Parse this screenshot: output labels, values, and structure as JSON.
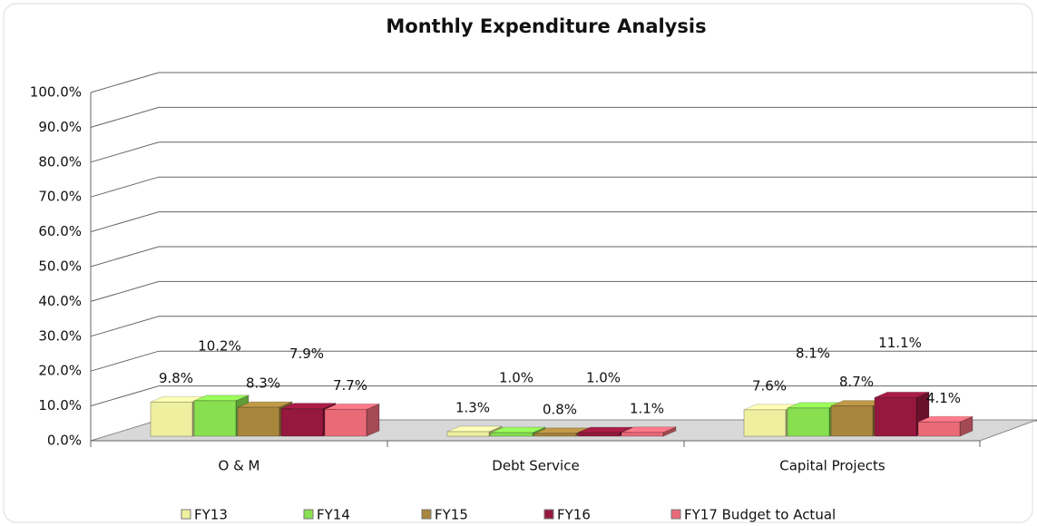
{
  "chart_data": {
    "type": "bar3d",
    "title": "Monthly Expenditure Analysis",
    "categories": [
      "O & M",
      "Debt Service",
      "Capital Projects"
    ],
    "series": [
      {
        "name": "FY13",
        "color": "#eef0a0",
        "values": [
          9.8,
          1.3,
          7.6
        ],
        "value_labels": [
          "9.8%",
          "1.3%",
          "7.6%"
        ]
      },
      {
        "name": "FY14",
        "color": "#88e050",
        "values": [
          10.2,
          1.0,
          8.1
        ],
        "value_labels": [
          "10.2%",
          "1.0%",
          "8.1%"
        ]
      },
      {
        "name": "FY15",
        "color": "#a8863e",
        "values": [
          8.3,
          0.8,
          8.7
        ],
        "value_labels": [
          "8.3%",
          "0.8%",
          "8.7%"
        ]
      },
      {
        "name": "FY16",
        "color": "#96183e",
        "values": [
          7.9,
          1.0,
          11.1
        ],
        "value_labels": [
          "7.9%",
          "1.0%",
          "11.1%"
        ]
      },
      {
        "name": "FY17 Budget to Actual",
        "color": "#ea6a78",
        "values": [
          7.7,
          1.1,
          4.1
        ],
        "value_labels": [
          "7.7%",
          "1.1%",
          "4.1%"
        ]
      }
    ],
    "ylim": [
      0,
      100
    ],
    "yticks": [
      {
        "value": 0,
        "label": "0.0%"
      },
      {
        "value": 10,
        "label": "10.0%"
      },
      {
        "value": 20,
        "label": "20.0%"
      },
      {
        "value": 30,
        "label": "30.0%"
      },
      {
        "value": 40,
        "label": "40.0%"
      },
      {
        "value": 50,
        "label": "50.0%"
      },
      {
        "value": 60,
        "label": "60.0%"
      },
      {
        "value": 70,
        "label": "70.0%"
      },
      {
        "value": 80,
        "label": "80.0%"
      },
      {
        "value": 90,
        "label": "90.0%"
      },
      {
        "value": 100,
        "label": "100.0%"
      }
    ],
    "grid": true,
    "legend": "bottom"
  }
}
